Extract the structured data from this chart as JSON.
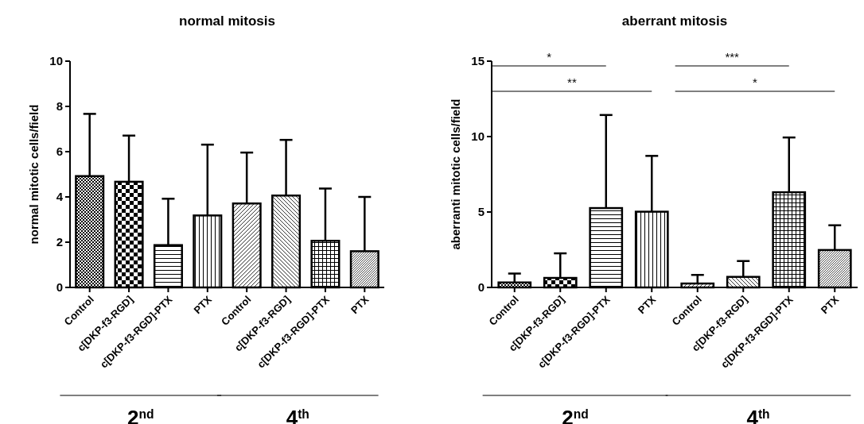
{
  "chart_data": [
    {
      "type": "bar",
      "title": "normal mitosis",
      "ylabel": "normal mitotic cells/field",
      "categories": [
        "Control",
        "c[DKP-f3-RGD]",
        "c[DKP-f3-RGD]-PTX",
        "PTX",
        "Control",
        "c[DKP-f3-RGD]",
        "c[DKP-f3-RGD]-PTX",
        "PTX"
      ],
      "values": [
        4.92,
        4.67,
        1.87,
        3.18,
        3.71,
        4.06,
        2.06,
        1.6
      ],
      "errors": [
        [
          4.92,
          7.67
        ],
        [
          4.67,
          6.71
        ],
        [
          1.87,
          3.92
        ],
        [
          3.18,
          6.31
        ],
        [
          3.71,
          5.96
        ],
        [
          4.06,
          6.52
        ],
        [
          2.06,
          4.37
        ],
        [
          1.6,
          4.0
        ]
      ],
      "ylim": [
        0,
        10
      ],
      "yticks": [
        0,
        2,
        4,
        6,
        8,
        10
      ],
      "annotations": [
        "2$^{nd}$",
        "4$^{th}$"
      ]
    },
    {
      "type": "bar",
      "title": "aberrant mitosis",
      "ylabel": "aberranti mitotic cells/field",
      "categories": [
        "Control",
        "c[DKP-f3-RGD]",
        "c[DKP-f3-RGD]-PTX",
        "PTX",
        "Control",
        "c[DKP-f3-RGD]",
        "c[DKP-f3-RGD]-PTX",
        "PTX"
      ],
      "values": [
        0.33,
        0.63,
        5.26,
        5.02,
        0.26,
        0.7,
        6.31,
        2.48
      ],
      "errors": [
        [
          0.33,
          0.92
        ],
        [
          0.63,
          2.26
        ],
        [
          5.26,
          11.43
        ],
        [
          5.02,
          8.72
        ],
        [
          0.26,
          0.83
        ],
        [
          0.7,
          1.75
        ],
        [
          6.31,
          9.94
        ],
        [
          2.48,
          4.12
        ]
      ],
      "ylim": [
        0,
        15
      ],
      "yticks": [
        0,
        5,
        10,
        15
      ],
      "annotations": [
        "*",
        "**",
        "***",
        "*",
        "2$^{nd}$",
        "4$^{th}$"
      ]
    }
  ]
}
